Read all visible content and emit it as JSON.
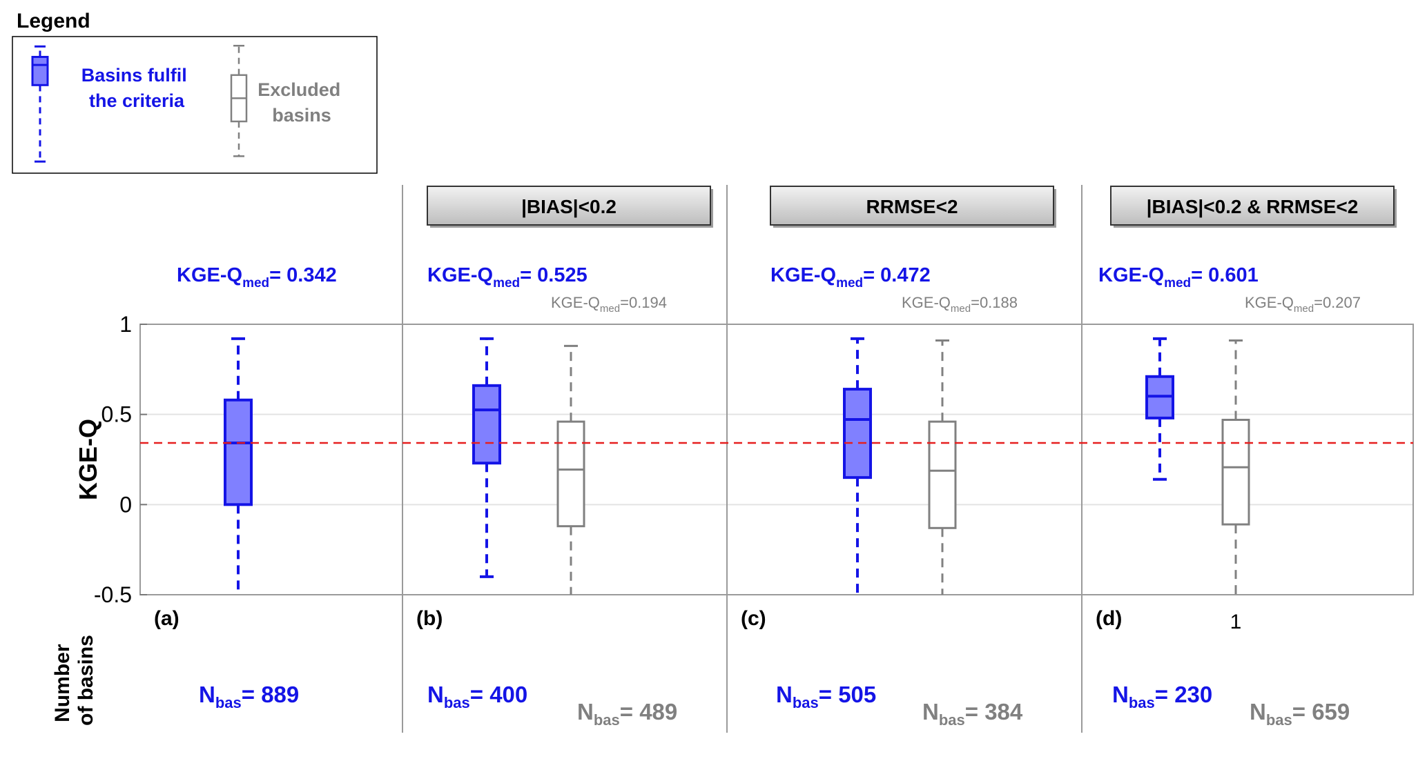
{
  "legend": {
    "title": "Legend",
    "criteria_label_line1": "Basins fulfil",
    "criteria_label_line2": "the criteria",
    "excluded_label_line1": "Excluded",
    "excluded_label_line2": "basins"
  },
  "colors": {
    "criteria": "#1414e6",
    "criteria_fill": "#8080ff",
    "excluded": "#808080",
    "reference_line": "#e61e1e"
  },
  "panels": [
    {
      "letter": "(a)",
      "filter": "",
      "kge_med_fulfil": "0.342",
      "kge_med_excluded": "",
      "n_fulfil": "889",
      "n_excluded": ""
    },
    {
      "letter": "(b)",
      "filter": "|BIAS|<0.2",
      "kge_med_fulfil": "0.525",
      "kge_med_excluded": "0.194",
      "n_fulfil": "400",
      "n_excluded": "489"
    },
    {
      "letter": "(c)",
      "filter": "RRMSE<2",
      "kge_med_fulfil": "0.472",
      "kge_med_excluded": "0.188",
      "n_fulfil": "505",
      "n_excluded": "384"
    },
    {
      "letter": "(d)",
      "filter": "|BIAS|<0.2 & RRMSE<2",
      "kge_med_fulfil": "0.601",
      "kge_med_excluded": "0.207",
      "n_fulfil": "230",
      "n_excluded": "659"
    }
  ],
  "kge_prefix": "KGE-Q",
  "kge_sub": "med",
  "kge_suffix": "= ",
  "n_prefix": "N",
  "n_sub": "bas",
  "n_suffix": "= ",
  "bottom_label_line1": "Number",
  "bottom_label_line2": "of basins",
  "x_tick_label": "1",
  "chart_data": {
    "type": "box",
    "ylabel": "KGE-Q",
    "ylim": [
      -0.5,
      1
    ],
    "yticks": [
      1,
      0.5,
      0,
      -0.5
    ],
    "ytick_labels": [
      "1",
      "0.5",
      "0",
      "-0.5"
    ],
    "reference_line_y": 0.342,
    "grid": true,
    "boxes": [
      {
        "panel": "(a)",
        "group": "Basins fulfil the criteria",
        "whisker_low": -0.5,
        "q1": 0.0,
        "median": 0.342,
        "q3": 0.58,
        "whisker_high": 0.92
      },
      {
        "panel": "(b)",
        "group": "Basins fulfil the criteria",
        "whisker_low": -0.4,
        "q1": 0.23,
        "median": 0.525,
        "q3": 0.66,
        "whisker_high": 0.92
      },
      {
        "panel": "(b)",
        "group": "Excluded basins",
        "whisker_low": -0.5,
        "q1": -0.12,
        "median": 0.194,
        "q3": 0.46,
        "whisker_high": 0.88
      },
      {
        "panel": "(c)",
        "group": "Basins fulfil the criteria",
        "whisker_low": -0.5,
        "q1": 0.15,
        "median": 0.472,
        "q3": 0.64,
        "whisker_high": 0.92
      },
      {
        "panel": "(c)",
        "group": "Excluded basins",
        "whisker_low": -0.5,
        "q1": -0.13,
        "median": 0.188,
        "q3": 0.46,
        "whisker_high": 0.91
      },
      {
        "panel": "(d)",
        "group": "Basins fulfil the criteria",
        "whisker_low": 0.14,
        "q1": 0.48,
        "median": 0.601,
        "q3": 0.71,
        "whisker_high": 0.92
      },
      {
        "panel": "(d)",
        "group": "Excluded basins",
        "whisker_low": -0.5,
        "q1": -0.11,
        "median": 0.207,
        "q3": 0.47,
        "whisker_high": 0.91
      }
    ]
  }
}
